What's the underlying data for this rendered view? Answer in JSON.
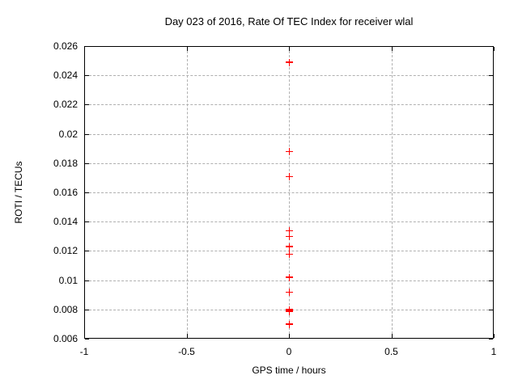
{
  "chart_data": {
    "type": "scatter",
    "title": "Day 023 of 2016, Rate Of TEC Index for receiver wlal",
    "xlabel": "GPS time / hours",
    "ylabel": "ROTI / TECUs",
    "xlim": [
      -1,
      1
    ],
    "ylim": [
      0.006,
      0.026
    ],
    "grid": true,
    "legend_position": "none",
    "xticks": {
      "values": [
        -1,
        -0.5,
        0,
        0.5,
        1
      ],
      "labels": [
        "-1",
        "-0.5",
        "0",
        "0.5",
        "1"
      ]
    },
    "yticks": {
      "values": [
        0.006,
        0.008,
        0.01,
        0.012,
        0.014,
        0.016,
        0.018,
        0.02,
        0.022,
        0.024,
        0.026
      ],
      "labels": [
        "0.006",
        "0.008",
        "0.01",
        "0.012",
        "0.014",
        "0.016",
        "0.018",
        "0.02",
        "0.022",
        "0.024",
        "0.026"
      ]
    },
    "series": [
      {
        "name": "roti",
        "marker": "plus",
        "color": "#ff0000",
        "points": [
          {
            "x": 0,
            "y": 0.0249
          },
          {
            "x": 0,
            "y": 0.0188
          },
          {
            "x": 0,
            "y": 0.0171
          },
          {
            "x": 0,
            "y": 0.0134
          },
          {
            "x": 0,
            "y": 0.013
          },
          {
            "x": 0,
            "y": 0.0123
          },
          {
            "x": 0,
            "y": 0.0118
          },
          {
            "x": 0,
            "y": 0.0102
          },
          {
            "x": 0,
            "y": 0.0092
          },
          {
            "x": 0,
            "y": 0.008
          },
          {
            "x": 0,
            "y": 0.0079
          },
          {
            "x": 0,
            "y": 0.007
          }
        ]
      }
    ]
  }
}
